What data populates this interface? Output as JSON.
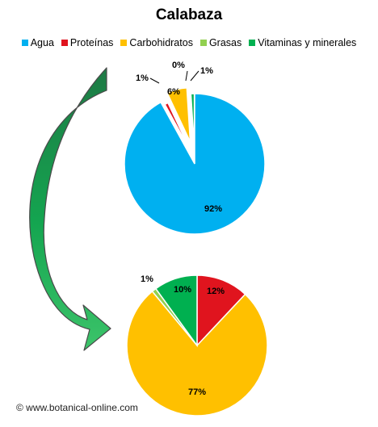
{
  "title": "Calabaza",
  "watermark": "© www.botanical-online.com",
  "legend": [
    {
      "label": "Agua",
      "color": "#00B0F0"
    },
    {
      "label": "Proteínas",
      "color": "#E0141E"
    },
    {
      "label": "Carbohidratos",
      "color": "#FFC000"
    },
    {
      "label": "Grasas",
      "color": "#92D050"
    },
    {
      "label": "Vitaminas y minerales",
      "color": "#00B050"
    }
  ],
  "chart_data": [
    {
      "type": "pie",
      "title": "",
      "categories": [
        "Agua",
        "Proteínas",
        "Carbohidratos",
        "Grasas",
        "Vitaminas y minerales"
      ],
      "values": [
        92,
        1,
        6,
        0,
        1
      ],
      "labels": [
        "92%",
        "1%",
        "6%",
        "0%",
        "1%"
      ],
      "colors": [
        "#00B0F0",
        "#E0141E",
        "#FFC000",
        "#92D050",
        "#00B050"
      ],
      "exploded": [
        "Proteínas",
        "Carbohidratos",
        "Grasas",
        "Vitaminas y minerales"
      ]
    },
    {
      "type": "pie",
      "title": "",
      "categories": [
        "Proteínas",
        "Carbohidratos",
        "Grasas",
        "Vitaminas y minerales"
      ],
      "values": [
        12,
        77,
        1,
        10
      ],
      "labels": [
        "12%",
        "77%",
        "1%",
        "10%"
      ],
      "colors": [
        "#E0141E",
        "#FFC000",
        "#92D050",
        "#00B050"
      ]
    }
  ]
}
